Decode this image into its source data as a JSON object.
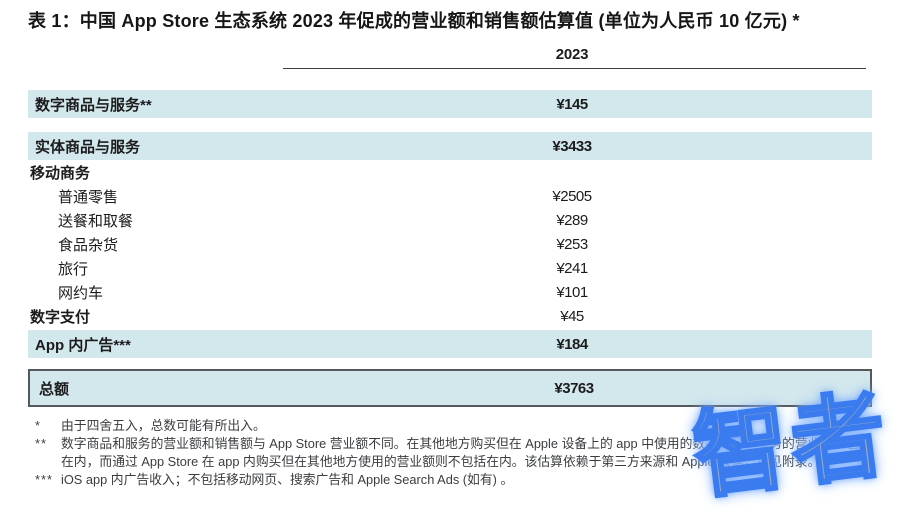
{
  "title": "表 1：中国 App Store 生态系统 2023 年促成的营业额和销售额估算值 (单位为人民币 10 亿元) *",
  "table": {
    "year_header": "2023",
    "rows": [
      {
        "label": "数字商品与服务**",
        "value": "¥145"
      },
      {
        "label": "实体商品与服务",
        "value": "¥3433"
      },
      {
        "label": "移动商务",
        "value": ""
      },
      {
        "label": "普通零售",
        "value": "¥2505"
      },
      {
        "label": "送餐和取餐",
        "value": "¥289"
      },
      {
        "label": "食品杂货",
        "value": "¥253"
      },
      {
        "label": "旅行",
        "value": "¥241"
      },
      {
        "label": "网约车",
        "value": "¥101"
      },
      {
        "label": "数字支付",
        "value": "¥45"
      },
      {
        "label": "App 内广告***",
        "value": "¥184"
      },
      {
        "label": "总额",
        "value": "¥3763"
      }
    ]
  },
  "footnotes": [
    {
      "marker": "*",
      "text": "由于四舍五入，总数可能有所出入。"
    },
    {
      "marker": "**",
      "text": "数字商品和服务的营业额和销售额与 App Store 营业额不同。在其他地方购买但在 Apple 设备上的 app 中使用的数字商品和服务的营业额预包括在内，而通过 App Store 在 app 内购买但在其他地方使用的营业额则不包括在内。该估算依赖于第三方来源和 Apple 数据，详见附录。"
    },
    {
      "marker": "***",
      "text": "iOS app 内广告收入；不包括移动网页、搜索广告和 Apple Search Ads (如有) 。"
    }
  ],
  "watermark": "智者",
  "colors": {
    "highlight": "#d3e8ec",
    "text": "#1c1c1e",
    "footnote_text": "#3a3d40",
    "header_rule": "#3c3f41",
    "total_border": "#54585a",
    "watermark_blue": "#3a7bf0",
    "watermark_fill": "#94aac4"
  }
}
